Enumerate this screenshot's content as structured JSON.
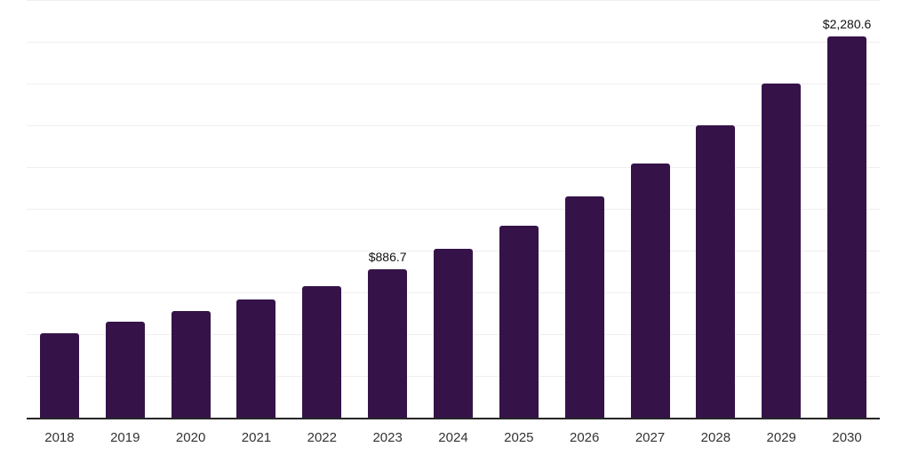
{
  "chart_data": {
    "type": "bar",
    "title": "",
    "xlabel": "",
    "ylabel": "",
    "categories": [
      "2018",
      "2019",
      "2020",
      "2021",
      "2022",
      "2023",
      "2024",
      "2025",
      "2026",
      "2027",
      "2028",
      "2029",
      "2030"
    ],
    "values": [
      505,
      577,
      638,
      707,
      787,
      886.7,
      1010,
      1148,
      1322,
      1521,
      1750,
      1998,
      2280.6
    ],
    "value_labels": [
      "",
      "",
      "",
      "",
      "",
      "$886.7",
      "",
      "",
      "",
      "",
      "",
      "",
      "$2,280.6"
    ],
    "ylim": [
      0,
      2500
    ],
    "gridline_step": 250,
    "grid": "horizontal",
    "legend_position": "none",
    "bar_color": "#351349"
  },
  "style": {
    "background_color": "#ffffff",
    "axis_line_color": "#262626",
    "gridline_color": "#efefef",
    "tick_label_color": "#333333",
    "value_label_color": "#111111"
  }
}
